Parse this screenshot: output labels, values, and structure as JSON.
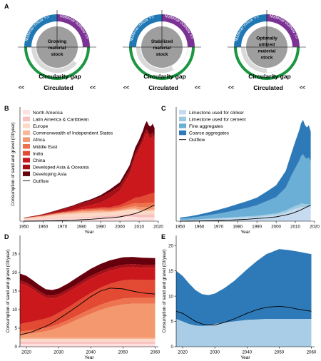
{
  "panel_a": {
    "label": "A",
    "inflow_label": "Material inflow",
    "outflow_label": "Material outflow",
    "arrows_right": ">>",
    "arrows_left": "<<",
    "gap_label": "Circularity gap",
    "circulated_label": "Circulated",
    "diagrams": [
      {
        "stock_lines": [
          "Growing",
          "material",
          "stock"
        ],
        "circulated_share": 0.22
      },
      {
        "stock_lines": [
          "Stabilized",
          "material",
          "stock"
        ],
        "circulated_share": 0.35
      },
      {
        "stock_lines": [
          "Optimally",
          "utilized",
          "material",
          "stock"
        ],
        "circulated_share": 0.5
      }
    ],
    "colors": {
      "inflow": "#1f78b4",
      "outflow": "#7b3294",
      "circulated": "#1a9641",
      "stock": "#9e9e9e",
      "gap": "#d9d9d9"
    }
  },
  "chart_data": [
    {
      "panel": "B",
      "type": "area",
      "stacked": true,
      "xlabel": "Year",
      "ylabel": "Consumption of sand and gravel (Gt/year)",
      "xlim": [
        1948,
        2020
      ],
      "ylim": [
        0,
        24
      ],
      "xticks": [
        1950,
        1960,
        1970,
        1980,
        1990,
        2000,
        2010,
        2020
      ],
      "x": [
        1950,
        1955,
        1960,
        1965,
        1970,
        1975,
        1980,
        1985,
        1990,
        1995,
        2000,
        2005,
        2008,
        2010,
        2012,
        2013,
        2014,
        2015,
        2016,
        2017,
        2018
      ],
      "legend_position": "top-left",
      "series": [
        {
          "name": "North America",
          "color": "#fee0e0",
          "values": [
            0.3,
            0.35,
            0.4,
            0.5,
            0.6,
            0.6,
            0.65,
            0.7,
            0.7,
            0.8,
            0.9,
            1.0,
            0.9,
            0.8,
            0.8,
            0.8,
            0.8,
            0.8,
            0.85,
            0.85,
            0.85
          ]
        },
        {
          "name": "Latin America & Caribbean",
          "color": "#f9c0c0",
          "values": [
            0.05,
            0.08,
            0.1,
            0.12,
            0.15,
            0.2,
            0.25,
            0.25,
            0.3,
            0.35,
            0.4,
            0.5,
            0.6,
            0.6,
            0.6,
            0.6,
            0.6,
            0.6,
            0.6,
            0.6,
            0.6
          ]
        },
        {
          "name": "Europe",
          "color": "#fcd9c6",
          "values": [
            0.2,
            0.3,
            0.4,
            0.55,
            0.65,
            0.7,
            0.75,
            0.75,
            0.8,
            0.75,
            0.8,
            0.9,
            0.95,
            0.8,
            0.75,
            0.75,
            0.75,
            0.75,
            0.75,
            0.75,
            0.75
          ]
        },
        {
          "name": "Commonwealth of Independent States",
          "color": "#f7b798",
          "values": [
            0.05,
            0.1,
            0.15,
            0.2,
            0.25,
            0.3,
            0.35,
            0.35,
            0.35,
            0.15,
            0.15,
            0.2,
            0.25,
            0.25,
            0.25,
            0.25,
            0.25,
            0.25,
            0.25,
            0.25,
            0.25
          ]
        },
        {
          "name": "Africa",
          "color": "#f4986f",
          "values": [
            0.02,
            0.03,
            0.05,
            0.06,
            0.08,
            0.1,
            0.12,
            0.12,
            0.15,
            0.18,
            0.25,
            0.35,
            0.45,
            0.5,
            0.55,
            0.55,
            0.6,
            0.6,
            0.6,
            0.6,
            0.6
          ]
        },
        {
          "name": "Middle East",
          "color": "#ee7450",
          "values": [
            0.01,
            0.02,
            0.03,
            0.05,
            0.08,
            0.15,
            0.25,
            0.3,
            0.3,
            0.35,
            0.4,
            0.55,
            0.7,
            0.75,
            0.8,
            0.85,
            0.85,
            0.85,
            0.85,
            0.85,
            0.85
          ]
        },
        {
          "name": "India",
          "color": "#e34a33",
          "values": [
            0.02,
            0.03,
            0.05,
            0.07,
            0.09,
            0.12,
            0.15,
            0.2,
            0.28,
            0.35,
            0.5,
            0.8,
            1.1,
            1.3,
            1.5,
            1.6,
            1.7,
            1.8,
            1.9,
            2.0,
            2.1
          ]
        },
        {
          "name": "China",
          "color": "#cb181d",
          "values": [
            0.03,
            0.05,
            0.1,
            0.12,
            0.15,
            0.2,
            0.4,
            0.7,
            1.0,
            2.0,
            3.0,
            5.5,
            8.5,
            10.0,
            11.5,
            12.5,
            13.0,
            12.0,
            11.5,
            12.0,
            11.0
          ]
        },
        {
          "name": "Developed Asia & Oceania",
          "color": "#a50f15",
          "values": [
            0.05,
            0.1,
            0.15,
            0.3,
            0.5,
            0.7,
            0.85,
            0.95,
            1.2,
            1.2,
            1.0,
            0.9,
            0.85,
            0.8,
            0.8,
            0.8,
            0.8,
            0.8,
            0.8,
            0.8,
            0.8
          ]
        },
        {
          "name": "Developing Asia",
          "color": "#67000d",
          "values": [
            0.02,
            0.03,
            0.05,
            0.08,
            0.1,
            0.15,
            0.2,
            0.3,
            0.4,
            0.6,
            0.8,
            1.0,
            1.2,
            1.3,
            1.5,
            1.6,
            1.7,
            1.7,
            1.8,
            1.8,
            1.8
          ]
        }
      ],
      "line": {
        "name": "Outflow",
        "color": "#000000",
        "values": [
          0.0,
          0.02,
          0.05,
          0.1,
          0.15,
          0.2,
          0.3,
          0.4,
          0.55,
          0.7,
          0.9,
          1.3,
          1.6,
          1.9,
          2.2,
          2.4,
          2.6,
          2.8,
          3.0,
          3.2,
          3.4
        ]
      }
    },
    {
      "panel": "C",
      "type": "area",
      "stacked": true,
      "xlabel": "Year",
      "ylabel": "",
      "xlim": [
        1948,
        2020
      ],
      "ylim": [
        0,
        24
      ],
      "xticks": [
        1950,
        1960,
        1970,
        1980,
        1990,
        2000,
        2010,
        2020
      ],
      "x": [
        1950,
        1955,
        1960,
        1965,
        1970,
        1975,
        1980,
        1985,
        1990,
        1995,
        2000,
        2005,
        2008,
        2010,
        2012,
        2013,
        2014,
        2015,
        2016,
        2017,
        2018
      ],
      "legend_position": "top-left",
      "series": [
        {
          "name": "Limestone used for clinker",
          "color": "#c6dbef",
          "values": [
            0.2,
            0.25,
            0.3,
            0.4,
            0.5,
            0.6,
            0.7,
            0.8,
            0.9,
            1.1,
            1.3,
            1.8,
            2.3,
            2.6,
            2.8,
            3.0,
            3.0,
            2.9,
            2.9,
            2.9,
            2.9
          ]
        },
        {
          "name": "Limestone used for cement",
          "color": "#9ecae1",
          "values": [
            0.05,
            0.07,
            0.1,
            0.12,
            0.15,
            0.17,
            0.2,
            0.22,
            0.25,
            0.3,
            0.35,
            0.45,
            0.55,
            0.6,
            0.7,
            0.7,
            0.7,
            0.7,
            0.7,
            0.7,
            0.7
          ]
        },
        {
          "name": "Fine aggregates",
          "color": "#6baed6",
          "values": [
            0.3,
            0.4,
            0.55,
            0.75,
            0.95,
            1.2,
            1.5,
            1.8,
            2.2,
            2.8,
            3.4,
            4.8,
            6.8,
            8.0,
            9.2,
            10.0,
            10.4,
            9.8,
            9.5,
            9.8,
            9.0
          ]
        },
        {
          "name": "Coarse aggregates",
          "color": "#2e7ab8",
          "values": [
            0.2,
            0.3,
            0.45,
            0.6,
            0.8,
            1.0,
            1.2,
            1.4,
            1.6,
            2.0,
            2.5,
            3.5,
            4.7,
            5.6,
            6.4,
            6.9,
            7.2,
            6.8,
            6.6,
            6.8,
            6.2
          ]
        }
      ],
      "line": {
        "name": "Outflow",
        "color": "#000000",
        "values": [
          0.0,
          0.02,
          0.05,
          0.1,
          0.15,
          0.2,
          0.3,
          0.4,
          0.55,
          0.7,
          0.9,
          1.3,
          1.6,
          1.9,
          2.2,
          2.4,
          2.6,
          2.8,
          3.0,
          3.2,
          3.4
        ]
      }
    },
    {
      "panel": "D",
      "type": "area",
      "stacked": true,
      "xlabel": "Year",
      "ylabel": "Consumption of sand and gravel (Gt/year)",
      "xlim": [
        2018,
        2061
      ],
      "ylim": [
        0,
        30
      ],
      "xticks": [
        2020,
        2030,
        2040,
        2050,
        2060
      ],
      "yticks": [
        0,
        5,
        10,
        15,
        20,
        25
      ],
      "x": [
        2018,
        2020,
        2022,
        2024,
        2026,
        2028,
        2030,
        2033,
        2036,
        2040,
        2043,
        2046,
        2050,
        2053,
        2056,
        2060
      ],
      "series": [
        {
          "color": "#fee0e0",
          "values": [
            0.8,
            0.8,
            0.8,
            0.8,
            0.8,
            0.8,
            0.8,
            0.8,
            0.8,
            0.8,
            0.8,
            0.8,
            0.8,
            0.8,
            0.8,
            0.8
          ]
        },
        {
          "color": "#f9c0c0",
          "values": [
            0.6,
            0.6,
            0.6,
            0.6,
            0.6,
            0.6,
            0.6,
            0.6,
            0.6,
            0.6,
            0.6,
            0.6,
            0.6,
            0.6,
            0.6,
            0.6
          ]
        },
        {
          "color": "#fcd9c6",
          "values": [
            0.7,
            0.7,
            0.7,
            0.7,
            0.7,
            0.7,
            0.7,
            0.7,
            0.7,
            0.7,
            0.7,
            0.7,
            0.7,
            0.7,
            0.7,
            0.7
          ]
        },
        {
          "color": "#f7b798",
          "values": [
            0.3,
            0.3,
            0.3,
            0.3,
            0.3,
            0.3,
            0.3,
            0.3,
            0.3,
            0.3,
            0.3,
            0.3,
            0.3,
            0.3,
            0.3,
            0.3
          ]
        },
        {
          "color": "#f4986f",
          "values": [
            0.8,
            1.0,
            1.2,
            1.5,
            1.8,
            2.2,
            2.8,
            3.8,
            5.0,
            6.5,
            7.5,
            8.3,
            9.0,
            9.2,
            9.2,
            9.2
          ]
        },
        {
          "color": "#ee7450",
          "values": [
            0.9,
            0.9,
            0.9,
            0.9,
            0.9,
            0.9,
            0.9,
            1.0,
            1.1,
            1.3,
            1.4,
            1.5,
            1.6,
            1.6,
            1.6,
            1.6
          ]
        },
        {
          "color": "#e34a33",
          "values": [
            2.0,
            2.2,
            2.3,
            2.4,
            2.5,
            2.7,
            3.0,
            3.4,
            3.8,
            4.3,
            4.6,
            4.8,
            4.9,
            4.9,
            4.8,
            4.8
          ]
        },
        {
          "color": "#cb181d",
          "values": [
            11.0,
            10.0,
            8.6,
            7.0,
            5.6,
            4.8,
            4.3,
            4.1,
            4.0,
            3.8,
            3.6,
            3.5,
            3.4,
            3.4,
            3.3,
            3.3
          ]
        },
        {
          "color": "#a50f15",
          "values": [
            0.8,
            0.8,
            0.8,
            0.8,
            0.8,
            0.8,
            0.8,
            0.8,
            0.8,
            0.8,
            0.8,
            0.8,
            0.8,
            0.8,
            0.8,
            0.8
          ]
        },
        {
          "color": "#67000d",
          "values": [
            1.8,
            1.8,
            1.7,
            1.6,
            1.5,
            1.5,
            1.5,
            1.6,
            1.7,
            1.9,
            2.0,
            2.0,
            2.0,
            1.9,
            1.9,
            1.8
          ]
        }
      ],
      "line": {
        "color": "#000000",
        "values": [
          3.2,
          3.6,
          4.1,
          4.8,
          5.5,
          6.4,
          7.5,
          9.2,
          11.0,
          13.5,
          15.0,
          15.8,
          15.6,
          15.0,
          14.5,
          14.2
        ]
      }
    },
    {
      "panel": "E",
      "type": "area",
      "stacked": true,
      "xlabel": "Year",
      "ylabel": "Consumption of sand and gravel (Gt/year)",
      "xlim": [
        2018,
        2061
      ],
      "ylim": [
        0,
        22
      ],
      "xticks": [
        2020,
        2030,
        2040,
        2050,
        2060
      ],
      "yticks": [
        0,
        5,
        10,
        15,
        20
      ],
      "x": [
        2018,
        2020,
        2022,
        2024,
        2026,
        2028,
        2030,
        2033,
        2036,
        2040,
        2043,
        2046,
        2050,
        2053,
        2056,
        2060
      ],
      "series": [
        {
          "color": "#a9cde6",
          "values": [
            5.5,
            5.0,
            4.5,
            4.2,
            4.1,
            4.2,
            4.5,
            4.8,
            5.0,
            5.3,
            5.4,
            5.5,
            5.5,
            5.5,
            5.5,
            5.5
          ]
        },
        {
          "color": "#2e7ab8",
          "values": [
            9.5,
            9.0,
            8.0,
            7.0,
            6.3,
            6.0,
            6.0,
            6.8,
            8.0,
            10.0,
            11.5,
            12.8,
            13.8,
            13.6,
            13.3,
            12.8
          ]
        }
      ],
      "line": {
        "color": "#000000",
        "values": [
          7.0,
          6.6,
          5.8,
          5.0,
          4.5,
          4.3,
          4.3,
          4.8,
          5.5,
          6.6,
          7.3,
          7.8,
          8.0,
          7.8,
          7.4,
          7.0
        ]
      }
    }
  ]
}
